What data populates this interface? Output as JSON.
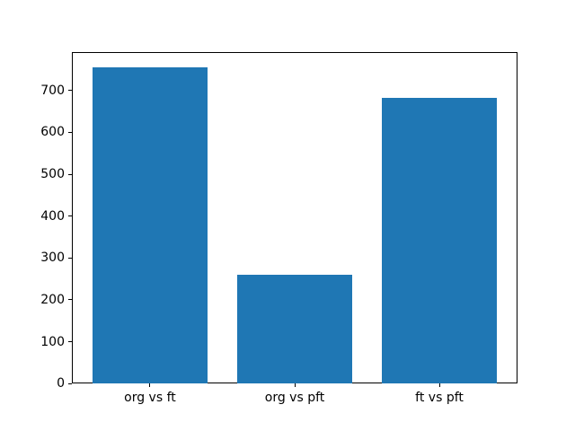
{
  "chart_data": {
    "type": "bar",
    "title": "",
    "xlabel": "",
    "ylabel": "",
    "categories": [
      "org vs ft",
      "org vs pft",
      "ft vs pft"
    ],
    "values": [
      755,
      260,
      682
    ],
    "yticks": [
      0,
      100,
      200,
      300,
      400,
      500,
      600,
      700
    ],
    "ylim": [
      0,
      792.75
    ],
    "bar_color": "#1f77b4",
    "grid": false,
    "legend_position": "none",
    "background_color": "#ffffff",
    "spine_color": "#000000"
  }
}
